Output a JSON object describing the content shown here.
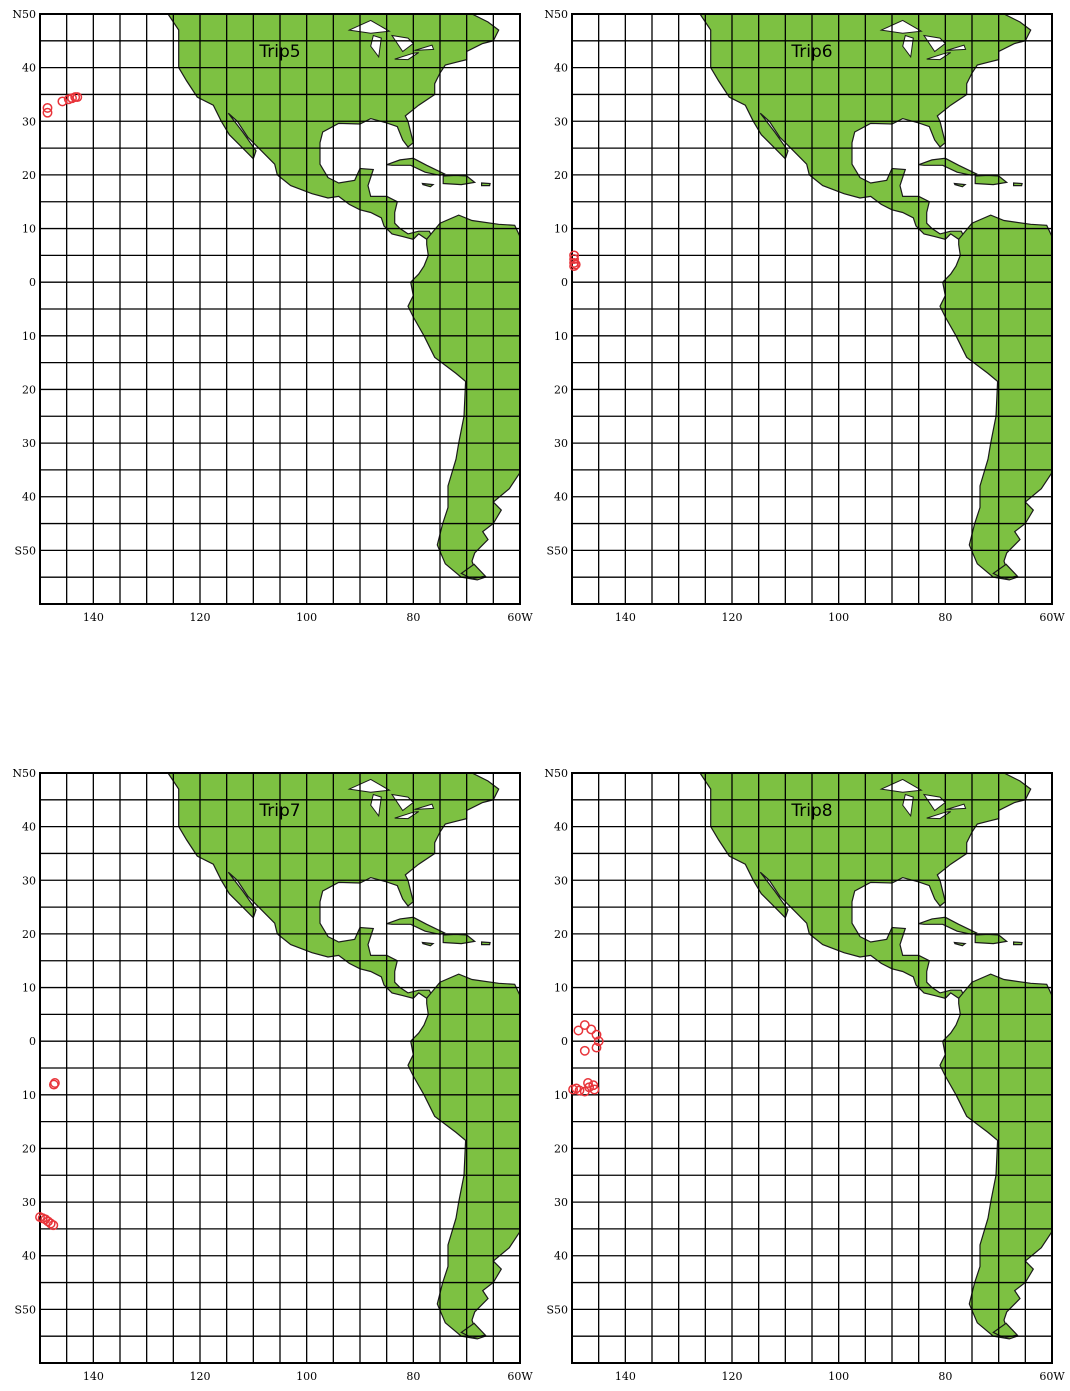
{
  "maps": [
    {
      "title": "Trip5",
      "lat_labels": [
        "N50",
        "40",
        "30",
        "20",
        "10",
        "0",
        "10",
        "20",
        "30",
        "40",
        "S50"
      ],
      "lon_labels": [
        "140",
        "120",
        "100",
        "80",
        "60W"
      ],
      "points": [
        {
          "lon": -148.6,
          "lat": 32.5
        },
        {
          "lon": -148.6,
          "lat": 31.6
        },
        {
          "lon": -145.8,
          "lat": 33.7
        },
        {
          "lon": -144.6,
          "lat": 34.1
        },
        {
          "lon": -144.0,
          "lat": 34.3
        },
        {
          "lon": -143.4,
          "lat": 34.5
        },
        {
          "lon": -143.0,
          "lat": 34.5
        }
      ]
    },
    {
      "title": "Trip6",
      "lat_labels": [
        "N50",
        "40",
        "30",
        "20",
        "10",
        "0",
        "10",
        "20",
        "30",
        "40",
        "S50"
      ],
      "lon_labels": [
        "140",
        "120",
        "100",
        "80",
        "60W"
      ],
      "points": [
        {
          "lon": -149.6,
          "lat": 5.0
        },
        {
          "lon": -149.6,
          "lat": 4.3
        },
        {
          "lon": -149.6,
          "lat": 3.6
        },
        {
          "lon": -149.6,
          "lat": 3.0
        },
        {
          "lon": -149.3,
          "lat": 3.3
        }
      ]
    },
    {
      "title": "Trip7",
      "lat_labels": [
        "N50",
        "40",
        "30",
        "20",
        "10",
        "0",
        "10",
        "20",
        "30",
        "40",
        "S50"
      ],
      "lon_labels": [
        "140",
        "120",
        "100",
        "80",
        "60W"
      ],
      "points": [
        {
          "lon": -147.2,
          "lat": -7.8
        },
        {
          "lon": -147.4,
          "lat": -8.1
        },
        {
          "lon": -150.0,
          "lat": -32.8
        },
        {
          "lon": -149.5,
          "lat": -33.0
        },
        {
          "lon": -149.0,
          "lat": -33.2
        },
        {
          "lon": -148.5,
          "lat": -33.6
        },
        {
          "lon": -148.0,
          "lat": -34.0
        },
        {
          "lon": -147.5,
          "lat": -34.3
        }
      ]
    },
    {
      "title": "Trip8",
      "lat_labels": [
        "N50",
        "40",
        "30",
        "20",
        "10",
        "0",
        "10",
        "20",
        "30",
        "40",
        "S50"
      ],
      "lon_labels": [
        "140",
        "120",
        "100",
        "80",
        "60W"
      ],
      "points": [
        {
          "lon": -148.8,
          "lat": 2.0
        },
        {
          "lon": -147.6,
          "lat": 3.0
        },
        {
          "lon": -146.4,
          "lat": 2.2
        },
        {
          "lon": -145.4,
          "lat": 1.2
        },
        {
          "lon": -145.0,
          "lat": 0.0
        },
        {
          "lon": -145.4,
          "lat": -1.2
        },
        {
          "lon": -147.6,
          "lat": -1.8
        },
        {
          "lon": -147.0,
          "lat": -7.8
        },
        {
          "lon": -146.0,
          "lat": -8.2
        },
        {
          "lon": -149.2,
          "lat": -8.8
        },
        {
          "lon": -148.6,
          "lat": -9.2
        },
        {
          "lon": -147.6,
          "lat": -9.4
        },
        {
          "lon": -146.8,
          "lat": -8.6
        },
        {
          "lon": -145.8,
          "lat": -9.0
        },
        {
          "lon": -149.8,
          "lat": -9.0
        }
      ]
    }
  ],
  "colors": {
    "land": "#7dc142",
    "marker": "#e8343a",
    "grid": "#000000"
  }
}
